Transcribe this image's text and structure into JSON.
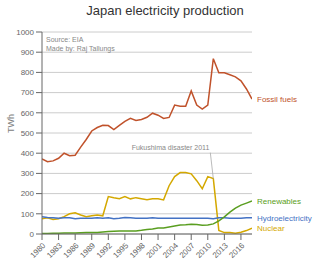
{
  "chart_data": {
    "type": "line",
    "title": "Japan electricity production",
    "ylabel": "TWh",
    "x": [
      1980,
      1981,
      1982,
      1983,
      1984,
      1985,
      1986,
      1987,
      1988,
      1989,
      1990,
      1991,
      1992,
      1993,
      1994,
      1995,
      1996,
      1997,
      1998,
      1999,
      2000,
      2001,
      2002,
      2003,
      2004,
      2005,
      2006,
      2007,
      2008,
      2009,
      2010,
      2011,
      2012,
      2013,
      2014,
      2015,
      2016,
      2017,
      2018
    ],
    "series": [
      {
        "name": "Fossil fuels",
        "color": "#c0522b",
        "values": [
          372,
          358,
          362,
          375,
          400,
          388,
          390,
          430,
          468,
          510,
          527,
          538,
          537,
          517,
          538,
          558,
          573,
          562,
          567,
          578,
          598,
          588,
          572,
          577,
          638,
          632,
          632,
          708,
          638,
          618,
          638,
          868,
          798,
          798,
          788,
          778,
          758,
          718,
          668
        ]
      },
      {
        "name": "Nuclear",
        "color": "#d4a800",
        "values": [
          76,
          80,
          72,
          76,
          86,
          100,
          105,
          94,
          85,
          90,
          94,
          90,
          185,
          179,
          175,
          185,
          174,
          180,
          175,
          170,
          174,
          175,
          169,
          239,
          284,
          304,
          304,
          298,
          264,
          224,
          284,
          274,
          18,
          7,
          7,
          4,
          9,
          17,
          29
        ]
      },
      {
        "name": "Hydroelectricity",
        "color": "#4472c4",
        "values": [
          85,
          82,
          80,
          78,
          80,
          80,
          76,
          78,
          78,
          78,
          80,
          78,
          80,
          75,
          78,
          82,
          80,
          78,
          78,
          78,
          80,
          78,
          78,
          78,
          78,
          78,
          78,
          78,
          78,
          78,
          78,
          75,
          80,
          80,
          78,
          78,
          78,
          80,
          80
        ]
      },
      {
        "name": "Renewables",
        "color": "#5a9e20",
        "values": [
          2,
          3,
          4,
          4,
          5,
          5,
          5,
          6,
          7,
          8,
          8,
          10,
          12,
          14,
          15,
          15,
          15,
          15,
          18,
          22,
          25,
          30,
          30,
          35,
          40,
          45,
          46,
          48,
          47,
          43,
          45,
          50,
          65,
          85,
          108,
          128,
          143,
          153,
          163
        ]
      }
    ],
    "xlim": [
      1980,
      2018
    ],
    "xticks": [
      1980,
      1983,
      1986,
      1989,
      1992,
      1995,
      1998,
      2001,
      2004,
      2007,
      2010,
      2013,
      2016
    ],
    "ylim": [
      0,
      1000
    ],
    "yticks": [
      0,
      100,
      200,
      300,
      400,
      500,
      600,
      700,
      800,
      900,
      1000
    ],
    "grid": true,
    "annotations": [
      {
        "text": "Source: EIA\nMade by: Raj Tallungs"
      },
      {
        "text": "Fukushima disaster 2011",
        "x": 2011,
        "y": 274
      }
    ]
  }
}
